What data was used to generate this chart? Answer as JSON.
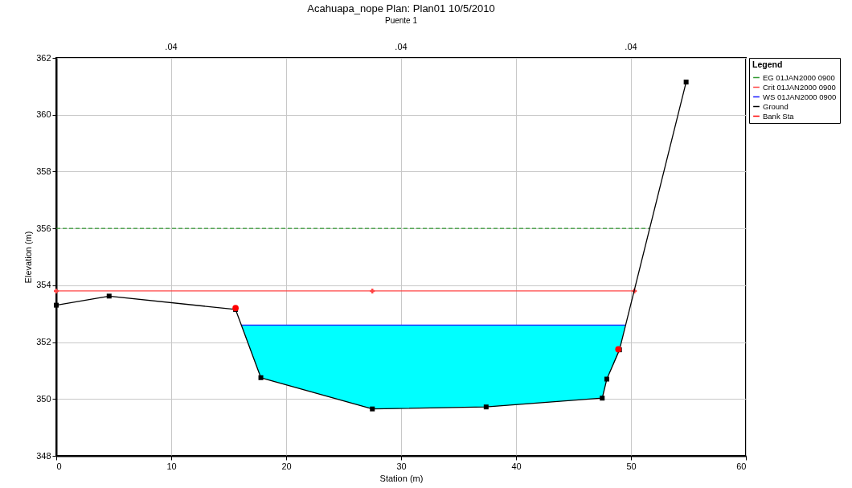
{
  "chart_data": {
    "type": "line",
    "title": "Acahuapa_nope      Plan: Plan01    10/5/2010",
    "subtitle": "Puente 1",
    "xlabel": "Station (m)",
    "ylabel": "Elevation (m)",
    "legend_title": "Legend",
    "legend": "right",
    "grid": true,
    "xlim": [
      0,
      60
    ],
    "xticks": [
      0,
      10,
      20,
      30,
      40,
      50,
      60
    ],
    "ylim": [
      348,
      362
    ],
    "yticks": [
      348,
      350,
      352,
      354,
      356,
      358,
      360,
      362
    ],
    "annotations": [
      ".04",
      ".04",
      ".04"
    ],
    "series": [
      {
        "name": "EG 01JAN2000 0900",
        "type": "line",
        "color": "#339933",
        "line_style": "dashed",
        "marker": "none",
        "x": [
          0,
          51.6
        ],
        "values": [
          356.0,
          356.0
        ]
      },
      {
        "name": "Crit 01JAN2000 0900",
        "type": "line",
        "color": "#ff4444",
        "marker": "cross",
        "x": [
          0,
          27.5,
          50.3
        ],
        "values": [
          353.8,
          353.8,
          353.8
        ]
      },
      {
        "name": "WS 01JAN2000 0900",
        "type": "line",
        "color": "#1a1aff",
        "marker": "none",
        "x": [
          16.1,
          17.8,
          27.5,
          37.4,
          47.5,
          47.9,
          49.0,
          49.5
        ],
        "values": [
          352.6,
          352.6,
          352.6,
          352.6,
          352.6,
          352.6,
          352.6,
          352.6
        ],
        "lower": [
          352.6,
          350.75,
          349.65,
          349.72,
          350.03,
          350.7,
          351.73,
          352.6
        ],
        "upper": [
          352.6,
          352.6,
          352.6,
          352.6,
          352.6,
          352.6,
          352.6,
          352.6
        ]
      },
      {
        "name": "Ground",
        "type": "line",
        "color": "#000000",
        "marker": "square",
        "x": [
          0,
          4.6,
          15.6,
          17.8,
          27.5,
          37.4,
          47.5,
          47.9,
          49.0,
          54.8
        ],
        "values": [
          353.3,
          353.62,
          353.15,
          350.75,
          349.65,
          349.72,
          350.03,
          350.7,
          351.73,
          361.15
        ]
      },
      {
        "name": "Bank Sta",
        "type": "scatter",
        "color": "#ff0000",
        "marker": "circle",
        "x": [
          15.6,
          48.9
        ],
        "values": [
          353.2,
          351.75
        ]
      }
    ]
  }
}
